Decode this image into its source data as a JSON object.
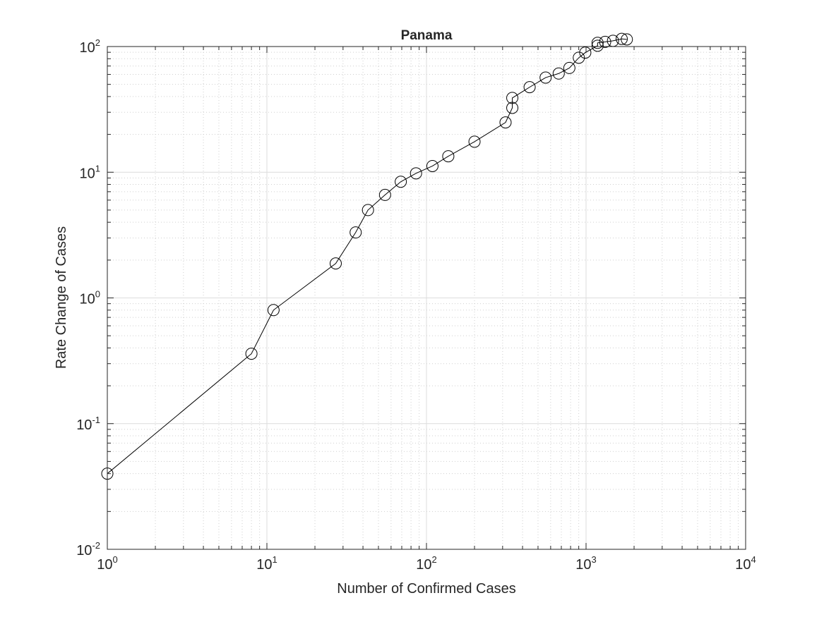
{
  "chart_data": {
    "type": "scatter",
    "title": "Panama",
    "xlabel": "Number of Confirmed Cases",
    "ylabel": "Rate Change of Cases",
    "xscale": "log",
    "yscale": "log",
    "xlim": [
      1,
      10000
    ],
    "ylim": [
      0.01,
      100
    ],
    "grid": true,
    "minor_grid": true,
    "box": true,
    "line_color": "#000000",
    "marker": "open-circle",
    "x_ticks": [
      {
        "base": "10",
        "exp": "0",
        "value": 1
      },
      {
        "base": "10",
        "exp": "1",
        "value": 10
      },
      {
        "base": "10",
        "exp": "2",
        "value": 100
      },
      {
        "base": "10",
        "exp": "3",
        "value": 1000
      },
      {
        "base": "10",
        "exp": "4",
        "value": 10000
      }
    ],
    "y_ticks": [
      {
        "base": "10",
        "exp": "-2",
        "value": 0.01
      },
      {
        "base": "10",
        "exp": "-1",
        "value": 0.1
      },
      {
        "base": "10",
        "exp": "0",
        "value": 1
      },
      {
        "base": "10",
        "exp": "1",
        "value": 10
      },
      {
        "base": "10",
        "exp": "2",
        "value": 100
      }
    ],
    "series": [
      {
        "points": [
          {
            "x": 1,
            "y": 0.04
          },
          {
            "x": 8,
            "y": 0.36
          },
          {
            "x": 11,
            "y": 0.8
          },
          {
            "x": 27,
            "y": 1.88
          },
          {
            "x": 36,
            "y": 3.32
          },
          {
            "x": 43,
            "y": 5.0
          },
          {
            "x": 55,
            "y": 6.6
          },
          {
            "x": 69,
            "y": 8.4
          },
          {
            "x": 86,
            "y": 9.8
          },
          {
            "x": 109,
            "y": 11.2
          },
          {
            "x": 137,
            "y": 13.4
          },
          {
            "x": 200,
            "y": 17.5
          },
          {
            "x": 313,
            "y": 24.9
          },
          {
            "x": 345,
            "y": 32.5
          },
          {
            "x": 345,
            "y": 39.0
          },
          {
            "x": 443,
            "y": 47.5
          },
          {
            "x": 558,
            "y": 56.6
          },
          {
            "x": 674,
            "y": 61.0
          },
          {
            "x": 786,
            "y": 67.5
          },
          {
            "x": 901,
            "y": 81.5
          },
          {
            "x": 989,
            "y": 89.5
          },
          {
            "x": 1181,
            "y": 101.5
          },
          {
            "x": 1181,
            "y": 107.0
          },
          {
            "x": 1317,
            "y": 109.0
          },
          {
            "x": 1475,
            "y": 111.0
          },
          {
            "x": 1673,
            "y": 115.0
          },
          {
            "x": 1801,
            "y": 114.0
          }
        ]
      }
    ]
  }
}
